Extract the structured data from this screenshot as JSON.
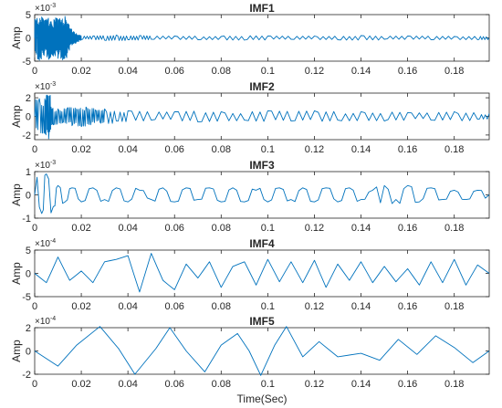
{
  "chart_data": {
    "type": "line",
    "xlabel": "Time(Sec)",
    "xlim": [
      0,
      0.195
    ],
    "x_ticks": [
      0,
      0.02,
      0.04,
      0.06,
      0.08,
      0.1,
      0.12,
      0.14,
      0.16,
      0.18
    ],
    "x_tick_labels": [
      "0",
      "0.02",
      "0.04",
      "0.06",
      "0.08",
      "0.1",
      "0.12",
      "0.14",
      "0.16",
      "0.18"
    ],
    "line_color": "#0072BD",
    "x_end": 0.195,
    "panels": [
      {
        "title": "IMF1",
        "ylabel": "Amp",
        "multiplier_base": "×10",
        "multiplier_exp": "-3",
        "ylim": [
          -5,
          5
        ],
        "y_ticks": [
          -5,
          0,
          5
        ],
        "y_tick_labels": [
          "-5",
          "0",
          "5"
        ],
        "series": [
          {
            "x": [
              0,
              0.001,
              0.002,
              0.003,
              0.004,
              0.005,
              0.006,
              0.007,
              0.008,
              0.009,
              0.01,
              0.011,
              0.012,
              0.013,
              0.014,
              0.015,
              0.016,
              0.017,
              0.018,
              0.019,
              0.02,
              0.025,
              0.03,
              0.035,
              0.04,
              0.045,
              0.05,
              0.06,
              0.07,
              0.08,
              0.09,
              0.1,
              0.11,
              0.12,
              0.13,
              0.14,
              0.15,
              0.16,
              0.17,
              0.18,
              0.19,
              0.195
            ],
            "y": [
              0,
              4.2,
              -4.8,
              4.5,
              -3.8,
              4.0,
              -4.6,
              3.5,
              -3.9,
              4.3,
              -4.4,
              3.8,
              -4.7,
              4.6,
              -3.2,
              2.0,
              -1.5,
              1.2,
              -0.8,
              0.6,
              -0.4,
              0.4,
              -0.5,
              0.6,
              -0.4,
              0.5,
              -0.3,
              0.4,
              -0.4,
              0.3,
              -0.5,
              0.4,
              -0.3,
              0.4,
              -0.4,
              0.5,
              -0.3,
              0.4,
              -0.4,
              0.3,
              -0.4,
              0
            ]
          }
        ]
      },
      {
        "title": "IMF2",
        "ylabel": "Amp",
        "multiplier_base": "×10",
        "multiplier_exp": "-3",
        "ylim": [
          -2.5,
          2.5
        ],
        "y_ticks": [
          -2,
          0,
          2
        ],
        "y_tick_labels": [
          "-2",
          "0",
          "2"
        ],
        "series": [
          {
            "x": [
              0,
              0.002,
              0.004,
              0.005,
              0.006,
              0.007,
              0.008,
              0.01,
              0.012,
              0.014,
              0.016,
              0.018,
              0.02,
              0.022,
              0.024,
              0.026,
              0.028,
              0.03,
              0.035,
              0.04,
              0.05,
              0.06,
              0.07,
              0.08,
              0.09,
              0.1,
              0.11,
              0.12,
              0.13,
              0.14,
              0.15,
              0.16,
              0.17,
              0.18,
              0.19,
              0.195
            ],
            "y": [
              0,
              1.9,
              -1.8,
              2.2,
              -2.4,
              1.0,
              -0.9,
              0.8,
              -0.7,
              0.9,
              -1.0,
              0.8,
              -1.1,
              1.0,
              -0.9,
              0.7,
              -0.6,
              0.8,
              -0.5,
              0.6,
              -0.4,
              0.5,
              -0.6,
              0.5,
              -0.4,
              0.6,
              -0.5,
              0.6,
              -0.4,
              0.5,
              -0.5,
              0.4,
              -0.4,
              0.5,
              -0.3,
              0.3
            ]
          }
        ]
      },
      {
        "title": "IMF3",
        "ylabel": "Amp",
        "multiplier_base": "×10",
        "multiplier_exp": "-3",
        "ylim": [
          -1,
          1
        ],
        "y_ticks": [
          -1,
          0,
          1
        ],
        "y_tick_labels": [
          "-1",
          "0",
          "1"
        ],
        "series": [
          {
            "x": [
              0,
              0.003,
              0.005,
              0.008,
              0.01,
              0.013,
              0.016,
              0.02,
              0.025,
              0.03,
              0.035,
              0.04,
              0.045,
              0.05,
              0.055,
              0.06,
              0.065,
              0.07,
              0.075,
              0.08,
              0.085,
              0.09,
              0.095,
              0.1,
              0.105,
              0.11,
              0.115,
              0.12,
              0.125,
              0.13,
              0.135,
              0.14,
              0.145,
              0.15,
              0.155,
              0.16,
              0.165,
              0.17,
              0.175,
              0.18,
              0.185,
              0.19,
              0.195
            ],
            "y": [
              0,
              -0.8,
              0.9,
              -0.5,
              0.4,
              -0.3,
              0.3,
              -0.3,
              0.3,
              -0.2,
              0.3,
              -0.3,
              0.2,
              -0.2,
              0.3,
              -0.3,
              0.3,
              -0.2,
              0.3,
              -0.3,
              0.3,
              -0.3,
              0.2,
              -0.3,
              0.3,
              -0.2,
              0.3,
              -0.3,
              0.3,
              -0.3,
              0.3,
              -0.2,
              0.2,
              0.4,
              -0.2,
              0.4,
              -0.3,
              0.3,
              -0.2,
              0.2,
              -0.2,
              0.2,
              0
            ]
          }
        ]
      },
      {
        "title": "IMF4",
        "ylabel": "Amp",
        "multiplier_base": "×10",
        "multiplier_exp": "-4",
        "ylim": [
          -5,
          5
        ],
        "y_ticks": [
          -5,
          0,
          5
        ],
        "y_tick_labels": [
          "-5",
          "0",
          "5"
        ],
        "series": [
          {
            "x": [
              0,
              0.005,
              0.01,
              0.015,
              0.02,
              0.025,
              0.03,
              0.035,
              0.04,
              0.045,
              0.05,
              0.055,
              0.06,
              0.065,
              0.07,
              0.075,
              0.08,
              0.085,
              0.09,
              0.095,
              0.1,
              0.105,
              0.11,
              0.115,
              0.12,
              0.125,
              0.13,
              0.135,
              0.14,
              0.145,
              0.15,
              0.155,
              0.16,
              0.165,
              0.17,
              0.175,
              0.18,
              0.185,
              0.19,
              0.195
            ],
            "y": [
              0,
              -2.0,
              3.5,
              -1.5,
              0.5,
              -2.0,
              2.5,
              3.0,
              3.8,
              -4.0,
              4.3,
              -1.5,
              -3.5,
              2.0,
              -1.0,
              2.5,
              -3.0,
              1.5,
              2.5,
              -2.5,
              3.0,
              -1.8,
              2.5,
              -2.0,
              2.8,
              -3.0,
              2.0,
              -1.5,
              2.5,
              -2.0,
              1.5,
              -1.8,
              1.0,
              -2.5,
              2.5,
              -2.0,
              3.0,
              -2.5,
              1.8,
              0
            ]
          }
        ]
      },
      {
        "title": "IMF5",
        "ylabel": "Amp",
        "multiplier_base": "×10",
        "multiplier_exp": "-4",
        "ylim": [
          -2,
          2
        ],
        "y_ticks": [
          -2,
          0,
          2
        ],
        "y_tick_labels": [
          "-2",
          "0",
          "2"
        ],
        "series": [
          {
            "x": [
              0,
              0.01,
              0.018,
              0.028,
              0.036,
              0.043,
              0.052,
              0.058,
              0.065,
              0.073,
              0.08,
              0.087,
              0.092,
              0.097,
              0.103,
              0.108,
              0.115,
              0.122,
              0.13,
              0.14,
              0.148,
              0.156,
              0.164,
              0.172,
              0.18,
              0.188,
              0.195
            ],
            "y": [
              0,
              -1.3,
              0.5,
              2.1,
              0.2,
              -2.0,
              0.2,
              2.0,
              0.0,
              -1.8,
              0.5,
              1.5,
              0.0,
              -2.1,
              0.5,
              2.1,
              -0.5,
              0.8,
              -0.5,
              -0.2,
              -0.8,
              1.0,
              -0.3,
              1.3,
              0.3,
              -1.0,
              0
            ]
          }
        ]
      }
    ]
  }
}
